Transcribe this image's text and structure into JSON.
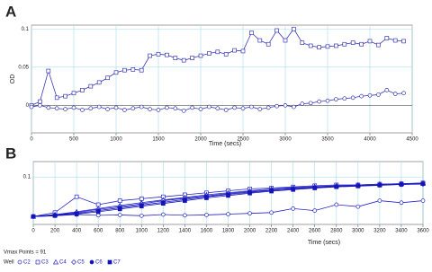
{
  "chart_data": [
    {
      "type": "line",
      "label": "A",
      "ylabel": "OD",
      "xlabel": "Time (secs)",
      "x": [
        0,
        100,
        200,
        300,
        400,
        500,
        600,
        700,
        800,
        900,
        1000,
        1100,
        1200,
        1300,
        1400,
        1500,
        1600,
        1700,
        1800,
        1900,
        2000,
        2100,
        2200,
        2300,
        2400,
        2500,
        2600,
        2700,
        2800,
        2900,
        3000,
        3100,
        3200,
        3300,
        3400,
        3500,
        3600,
        3700,
        3800,
        3900,
        4000,
        4100,
        4200,
        4300,
        4400
      ],
      "series": [
        {
          "marker": "square",
          "color": "#3a3ab4",
          "values": [
            0,
            0.005,
            0.045,
            0.01,
            0.012,
            0.016,
            0.02,
            0.025,
            0.03,
            0.036,
            0.043,
            0.046,
            0.047,
            0.046,
            0.065,
            0.067,
            0.066,
            0.062,
            0.059,
            0.062,
            0.065,
            0.068,
            0.07,
            0.067,
            0.072,
            0.071,
            0.095,
            0.085,
            0.08,
            0.098,
            0.085,
            0.1,
            0.082,
            0.078,
            0.076,
            0.077,
            0.078,
            0.08,
            0.082,
            0.08,
            0.084,
            0.079,
            0.088,
            0.085,
            0.084
          ]
        },
        {
          "marker": "circle",
          "color": "#3a3ab4",
          "values": [
            -0.002,
            0,
            -0.003,
            -0.004,
            -0.005,
            -0.003,
            -0.006,
            -0.004,
            -0.002,
            -0.005,
            -0.003,
            -0.006,
            -0.004,
            -0.002,
            -0.005,
            -0.006,
            -0.003,
            -0.004,
            -0.007,
            -0.003,
            -0.005,
            -0.002,
            -0.004,
            -0.006,
            -0.003,
            -0.004,
            -0.002,
            -0.005,
            -0.003,
            -0.001,
            0,
            -0.002,
            0.002,
            0.003,
            0.005,
            0.006,
            0.008,
            0.009,
            0.01,
            0.012,
            0.013,
            0.014,
            0.02,
            0.015,
            0.016
          ]
        }
      ],
      "xlim": [
        0,
        4500
      ],
      "ylim": [
        -0.036,
        0.105
      ],
      "xticks": [
        0,
        500,
        1000,
        1500,
        2000,
        2500,
        3000,
        3500,
        4000,
        4500
      ],
      "yticks": [
        0,
        0.05,
        0.1
      ],
      "grid": true
    },
    {
      "type": "line",
      "label": "B",
      "xlabel": "Time (secs)",
      "note": "Vmax Points = 91",
      "legend_title": "Well",
      "x": [
        0,
        200,
        400,
        600,
        800,
        1000,
        1200,
        1400,
        1600,
        1800,
        2000,
        2200,
        2400,
        2600,
        2800,
        3000,
        3200,
        3400,
        3600
      ],
      "series": [
        {
          "name": "C2",
          "marker": "circle",
          "color": "#2424c8",
          "values": [
            0,
            0.002,
            0.005,
            0.003,
            0.004,
            0.002,
            0.005,
            0.003,
            0.004,
            0.006,
            0.008,
            0.01,
            0.02,
            0.015,
            0.03,
            0.025,
            0.04,
            0.035,
            0.04
          ]
        },
        {
          "name": "C3",
          "marker": "square",
          "color": "#2424c8",
          "values": [
            0,
            0.01,
            0.05,
            0.03,
            0.04,
            0.045,
            0.05,
            0.055,
            0.06,
            0.065,
            0.07,
            0.072,
            0.075,
            0.078,
            0.08,
            0.08,
            0.082,
            0.083,
            0.085
          ]
        },
        {
          "name": "C4",
          "marker": "triangle",
          "color": "#2424c8",
          "values": [
            0,
            0.005,
            0.012,
            0.02,
            0.028,
            0.035,
            0.042,
            0.048,
            0.055,
            0.06,
            0.065,
            0.07,
            0.073,
            0.076,
            0.078,
            0.08,
            0.082,
            0.083,
            0.084
          ]
        },
        {
          "name": "C5",
          "marker": "diamond",
          "color": "#2424c8",
          "values": [
            0,
            0.004,
            0.01,
            0.018,
            0.025,
            0.032,
            0.04,
            0.046,
            0.052,
            0.058,
            0.063,
            0.067,
            0.071,
            0.074,
            0.077,
            0.079,
            0.08,
            0.081,
            0.082
          ]
        },
        {
          "name": "C6",
          "marker": "circle-filled",
          "color": "#1414b8",
          "values": [
            0,
            0.003,
            0.008,
            0.015,
            0.022,
            0.029,
            0.036,
            0.043,
            0.05,
            0.056,
            0.061,
            0.066,
            0.07,
            0.073,
            0.076,
            0.078,
            0.08,
            0.082,
            0.083
          ]
        },
        {
          "name": "C7",
          "marker": "square-filled",
          "color": "#1414b8",
          "values": [
            0,
            0.002,
            0.006,
            0.012,
            0.019,
            0.026,
            0.033,
            0.04,
            0.047,
            0.053,
            0.059,
            0.064,
            0.068,
            0.072,
            0.075,
            0.077,
            0.079,
            0.081,
            0.083
          ]
        }
      ],
      "xlim": [
        0,
        3600
      ],
      "ylim": [
        -0.02,
        0.139
      ],
      "xticks": [
        0,
        200,
        400,
        600,
        800,
        1000,
        1200,
        1400,
        1600,
        1800,
        2000,
        2200,
        2400,
        2600,
        2800,
        3000,
        3200,
        3400,
        3600
      ],
      "yticks": [
        0.1
      ],
      "grid": true
    }
  ]
}
